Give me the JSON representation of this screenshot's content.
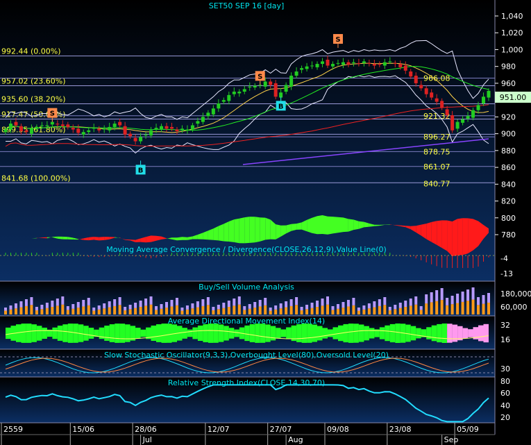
{
  "window": {
    "title": "SET50 SEP 16   [day]"
  },
  "colors": {
    "candle_up": "#22cc22",
    "candle_down": "#dd2222",
    "sig_sell": "#ff8a4a",
    "sig_buy": "#22dde8",
    "fib_text": "#ffff44",
    "level_text": "#ffff44",
    "bg_top": "#000000",
    "bg_bottom": "#0a2a5a",
    "axis_text": "#ffffff",
    "last_price_bg": "#ccffcc"
  },
  "price_panel": {
    "y_ticks": [
      "1,040",
      "1,020",
      "1,000",
      "980",
      "960",
      "940",
      "920",
      "900",
      "880",
      "860",
      "840",
      "820",
      "800",
      "780"
    ],
    "last_price": "951.00",
    "fib_levels": [
      {
        "label": "992.44 (0.00%)",
        "value": 992.44
      },
      {
        "label": "957.02 (23.60%)",
        "value": 957.02
      },
      {
        "label": "935.60 (38.20%)",
        "value": 935.6
      },
      {
        "label": "917.47 (50.00%)",
        "value": 917.47
      },
      {
        "label": "899.35 (61.80%)",
        "value": 899.35
      },
      {
        "label": "841.68 (100.00%)",
        "value": 841.68
      }
    ],
    "right_levels": [
      {
        "label": "966.08",
        "value": 966.08
      },
      {
        "label": "921.32",
        "value": 921.32
      },
      {
        "label": "896.27",
        "value": 896.27
      },
      {
        "label": "878.75",
        "value": 878.75
      },
      {
        "label": "861.07",
        "value": 861.07
      },
      {
        "label": "840.77",
        "value": 840.77
      }
    ],
    "signals": [
      {
        "type": "S",
        "label": "S",
        "index": 9,
        "price": 914
      },
      {
        "type": "B",
        "label": "B",
        "index": 26,
        "price": 868
      },
      {
        "type": "S",
        "label": "S",
        "index": 49,
        "price": 958
      },
      {
        "type": "B",
        "label": "B",
        "index": 53,
        "price": 944
      },
      {
        "type": "S",
        "label": "S",
        "index": 64,
        "price": 1002
      }
    ]
  },
  "chart_data": [
    {
      "type": "candlestick",
      "title": "SET50 SEP 16   [day]",
      "ylim": [
        770,
        1050
      ],
      "close": [
        905,
        912,
        910,
        903,
        902,
        906,
        908,
        910,
        910,
        914,
        911,
        909,
        908,
        905,
        901,
        902,
        904,
        907,
        904,
        906,
        908,
        912,
        910,
        899,
        897,
        891,
        896,
        899,
        904,
        907,
        909,
        906,
        906,
        903,
        906,
        905,
        910,
        915,
        920,
        925,
        930,
        936,
        940,
        946,
        950,
        950,
        953,
        956,
        957,
        958,
        962,
        958,
        944,
        949,
        958,
        969,
        974,
        978,
        980,
        981,
        983,
        986,
        981,
        983,
        984,
        985,
        982,
        985,
        983,
        986,
        983,
        981,
        982,
        985,
        986,
        983,
        979,
        975,
        968,
        960,
        954,
        947,
        943,
        938,
        931,
        922,
        904,
        914,
        917,
        921,
        928,
        934,
        944,
        951
      ],
      "x_tick_labels": [
        "2559",
        "15/06",
        "28/06",
        "12/07",
        "27/07",
        "09/08",
        "23/08",
        "05/09"
      ],
      "x_month_labels": [
        "Jul",
        "Aug",
        "Sep"
      ]
    },
    {
      "type": "area",
      "title": "Moving Average Convergence / Divergence(CLOSE,26,12,9),Value Line(0)",
      "y_ticks": [
        "-4",
        "-13"
      ]
    },
    {
      "type": "bar",
      "title": "Buy/Sell Volume Analysis",
      "y_ticks": [
        "180,000",
        "60,000"
      ]
    },
    {
      "type": "area",
      "title": "Average Directional Movement Index(14)",
      "y_ticks": [
        "32",
        "16"
      ]
    },
    {
      "type": "line",
      "title": "Slow Stochastic Oscillator(9,3,3),Overbought Level(80),Oversold Level(20)",
      "y_ticks": [
        "30"
      ]
    },
    {
      "type": "line",
      "title": "Relative Strength Index(CLOSE,14,30,70)",
      "y_ticks": [
        "80",
        "60",
        "40",
        "20"
      ]
    }
  ]
}
